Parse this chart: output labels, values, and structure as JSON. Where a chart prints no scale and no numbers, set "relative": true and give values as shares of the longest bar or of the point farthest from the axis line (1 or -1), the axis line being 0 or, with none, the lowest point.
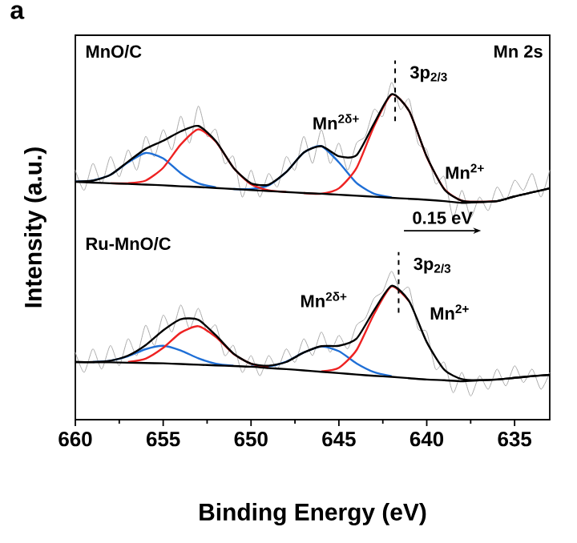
{
  "chart_data": {
    "type": "line",
    "xlabel": "Binding Energy (eV)",
    "ylabel": "Intensity (a.u.)",
    "relative": true,
    "xlim": [
      660,
      633
    ],
    "xticks": [
      660,
      655,
      650,
      645,
      640,
      635
    ],
    "tick_labels": "x",
    "grid": false,
    "marker": "none",
    "line_style": "solid",
    "annotations": [
      "a",
      "MnO/C",
      "Mn 2s",
      {
        "text": "3p$_{2/3}$",
        "x": 641.8,
        "y": 0.965
      },
      "Mn$^{2δ+}$",
      "Mn$^{2+}$",
      "Ru-MnO/C",
      "0.15 eV",
      {
        "text": "3p$_{2/3}$",
        "x": 641.6,
        "y": 0.397
      },
      "Mn$^{2δ+}$",
      "Mn$^{2+}$"
    ],
    "series": [
      {
        "color": "#aaaaaa",
        "x": [
          660,
          659.5,
          659,
          658.5,
          658,
          657.5,
          657,
          656.5,
          656,
          655.5,
          655,
          654.5,
          654,
          653.5,
          653,
          652.5,
          652,
          651.5,
          651,
          650.5,
          650,
          649.5,
          649,
          648.5,
          648,
          647.5,
          647,
          646.5,
          646,
          645.5,
          645,
          644.5,
          644,
          643.5,
          643,
          642.5,
          642,
          641.5,
          641,
          640.5,
          640,
          639.5,
          639,
          638.5,
          638,
          637.5,
          637,
          636.5,
          636,
          635.5,
          635,
          634.5,
          634,
          633.5,
          633
        ],
        "values": [
          0.74,
          0.68,
          0.76,
          0.7,
          0.78,
          0.72,
          0.8,
          0.74,
          0.84,
          0.78,
          0.86,
          0.8,
          0.9,
          0.82,
          0.93,
          0.84,
          0.86,
          0.76,
          0.78,
          0.66,
          0.74,
          0.66,
          0.73,
          0.69,
          0.78,
          0.74,
          0.84,
          0.76,
          0.86,
          0.76,
          0.82,
          0.74,
          0.82,
          0.84,
          0.92,
          0.9,
          1.0,
          0.92,
          0.95,
          0.82,
          0.8,
          0.7,
          0.72,
          0.6,
          0.68,
          0.6,
          0.66,
          0.62,
          0.69,
          0.65,
          0.71,
          0.68,
          0.73,
          0.66,
          0.74
        ]
      },
      {
        "color": "#1f6fd6",
        "x": [
          660,
          659,
          658,
          657,
          656,
          655,
          654,
          653,
          652
        ],
        "values": [
          0.706,
          0.709,
          0.726,
          0.763,
          0.791,
          0.775,
          0.731,
          0.701,
          0.689
        ]
      },
      {
        "color": "#ee2222",
        "x": [
          658,
          657,
          656,
          655,
          654,
          653,
          652,
          651,
          650,
          649,
          648
        ],
        "values": [
          0.701,
          0.701,
          0.709,
          0.747,
          0.816,
          0.861,
          0.824,
          0.747,
          0.698,
          0.68,
          0.675
        ]
      },
      {
        "color": "#1f6fd6",
        "x": [
          651,
          650,
          649,
          648,
          647,
          646,
          645,
          644,
          643,
          642
        ],
        "values": [
          0.684,
          0.684,
          0.695,
          0.734,
          0.792,
          0.811,
          0.763,
          0.702,
          0.67,
          0.659
        ]
      },
      {
        "color": "#ee2222",
        "x": [
          647,
          646,
          645,
          644,
          643,
          642,
          641,
          640,
          639,
          638,
          637,
          636
        ],
        "values": [
          0.672,
          0.67,
          0.686,
          0.746,
          0.87,
          0.964,
          0.915,
          0.779,
          0.684,
          0.649,
          0.646,
          0.648
        ]
      },
      {
        "color": "#000000",
        "x": [
          660,
          659,
          658,
          657,
          656,
          655,
          654,
          653,
          652,
          651,
          650,
          649,
          648,
          647,
          646,
          645,
          644,
          643,
          642,
          641,
          640,
          639,
          638,
          637,
          636,
          635,
          634,
          633
        ],
        "values": [
          0.705,
          0.703,
          0.701,
          0.699,
          0.697,
          0.695,
          0.692,
          0.69,
          0.687,
          0.684,
          0.681,
          0.678,
          0.675,
          0.672,
          0.67,
          0.667,
          0.664,
          0.661,
          0.658,
          0.655,
          0.652,
          0.648,
          0.643,
          0.645,
          0.648,
          0.662,
          0.674,
          0.686
        ]
      },
      {
        "color": "#000000",
        "x": [
          660,
          659,
          658,
          657,
          656,
          655,
          654,
          653,
          652,
          651,
          650,
          649,
          648,
          647,
          646,
          645,
          644,
          643,
          642,
          641,
          640,
          639,
          638,
          637,
          636,
          635,
          634,
          633
        ],
        "values": [
          0.706,
          0.709,
          0.726,
          0.765,
          0.803,
          0.827,
          0.855,
          0.871,
          0.826,
          0.747,
          0.701,
          0.697,
          0.734,
          0.792,
          0.811,
          0.781,
          0.784,
          0.878,
          0.965,
          0.915,
          0.78,
          0.683,
          0.649,
          0.646,
          0.648,
          0.662,
          0.674,
          0.686
        ]
      },
      {
        "color": "#aaaaaa",
        "x": [
          660,
          659.5,
          659,
          658.5,
          658,
          657.5,
          657,
          656.5,
          656,
          655.5,
          655,
          654.5,
          654,
          653.5,
          653,
          652.5,
          652,
          651.5,
          651,
          650.5,
          650,
          649.5,
          649,
          648.5,
          648,
          647.5,
          647,
          646.5,
          646,
          645.5,
          645,
          644.5,
          644,
          643.5,
          643,
          642.5,
          642,
          641.5,
          641,
          640.5,
          640,
          639.5,
          639,
          638.5,
          638,
          637.5,
          637,
          636.5,
          636,
          635.5,
          635,
          634.5,
          634,
          633.5,
          633
        ],
        "values": [
          0.2,
          0.14,
          0.21,
          0.15,
          0.22,
          0.16,
          0.24,
          0.19,
          0.28,
          0.22,
          0.31,
          0.26,
          0.34,
          0.27,
          0.33,
          0.26,
          0.28,
          0.19,
          0.22,
          0.14,
          0.19,
          0.13,
          0.19,
          0.15,
          0.21,
          0.17,
          0.24,
          0.19,
          0.26,
          0.2,
          0.25,
          0.21,
          0.28,
          0.3,
          0.36,
          0.38,
          0.44,
          0.38,
          0.39,
          0.27,
          0.26,
          0.15,
          0.17,
          0.08,
          0.14,
          0.07,
          0.13,
          0.09,
          0.15,
          0.1,
          0.16,
          0.11,
          0.15,
          0.09,
          0.14
        ]
      },
      {
        "color": "#1f6fd6",
        "x": [
          659,
          658,
          657,
          656,
          655,
          654,
          653,
          652,
          651
        ],
        "values": [
          0.171,
          0.175,
          0.188,
          0.209,
          0.219,
          0.205,
          0.182,
          0.166,
          0.16
        ]
      },
      {
        "color": "#ee2222",
        "x": [
          657,
          656,
          655,
          654,
          653,
          652,
          651,
          650,
          649
        ],
        "values": [
          0.171,
          0.181,
          0.213,
          0.258,
          0.277,
          0.245,
          0.195,
          0.166,
          0.155
        ]
      },
      {
        "color": "#1f6fd6",
        "x": [
          650,
          649,
          648,
          647,
          646,
          645,
          644,
          643,
          642
        ],
        "values": [
          0.158,
          0.158,
          0.172,
          0.199,
          0.217,
          0.203,
          0.167,
          0.141,
          0.129
        ]
      },
      {
        "color": "#ee2222",
        "x": [
          646,
          645,
          644,
          643,
          642,
          641
        ],
        "values": [
          0.143,
          0.154,
          0.206,
          0.313,
          0.395,
          0.351
        ]
      },
      {
        "color": "#000000",
        "x": [
          660,
          659,
          658,
          657,
          656,
          655,
          654,
          653,
          652,
          651,
          650,
          649,
          648,
          647,
          646,
          645,
          644,
          643,
          642,
          641,
          640,
          639,
          638,
          637,
          636,
          635,
          634,
          633
        ],
        "values": [
          0.171,
          0.17,
          0.17,
          0.169,
          0.168,
          0.167,
          0.165,
          0.163,
          0.161,
          0.159,
          0.157,
          0.153,
          0.15,
          0.146,
          0.142,
          0.138,
          0.134,
          0.13,
          0.127,
          0.123,
          0.119,
          0.117,
          0.114,
          0.117,
          0.119,
          0.124,
          0.129,
          0.133
        ]
      },
      {
        "color": "#000000",
        "x": [
          660,
          659,
          658,
          657,
          656,
          655,
          654,
          653,
          652,
          651,
          650,
          649,
          648,
          647,
          646,
          645,
          644,
          643,
          642,
          641,
          640,
          639,
          638,
          637,
          636,
          635,
          634,
          633
        ],
        "values": [
          0.171,
          0.171,
          0.175,
          0.19,
          0.221,
          0.265,
          0.298,
          0.296,
          0.25,
          0.196,
          0.166,
          0.16,
          0.171,
          0.199,
          0.218,
          0.219,
          0.24,
          0.324,
          0.397,
          0.351,
          0.23,
          0.148,
          0.12,
          0.117,
          0.119,
          0.124,
          0.129,
          0.133
        ]
      }
    ]
  }
}
